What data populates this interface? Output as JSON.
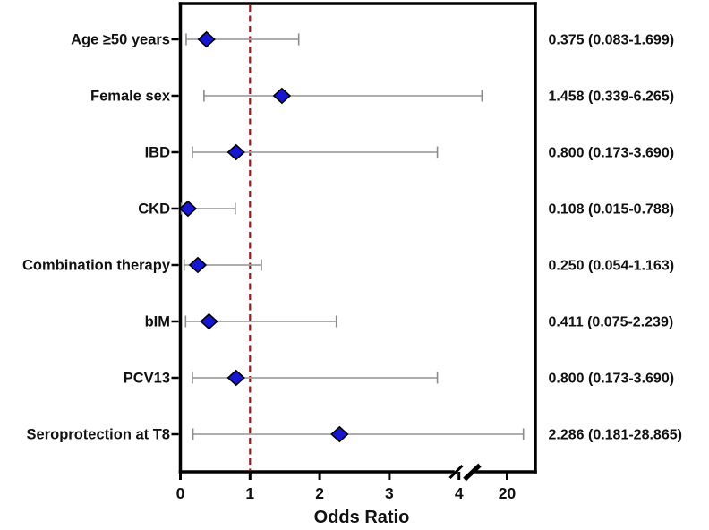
{
  "chart_data": {
    "type": "scatter",
    "subtype": "forest-plot",
    "title": "",
    "xlabel": "Odds Ratio",
    "ylabel": "",
    "x_ticks": [
      0,
      1,
      2,
      3,
      4,
      20
    ],
    "axis_break_between": [
      4,
      20
    ],
    "reference_line": 1,
    "xlim_linear_max": 4.6,
    "rows": [
      {
        "label": "Age ≥50 years",
        "or": 0.375,
        "ci_low": 0.083,
        "ci_high": 1.699,
        "value_label": "0.375 (0.083-1.699)"
      },
      {
        "label": "Female sex",
        "or": 1.458,
        "ci_low": 0.339,
        "ci_high": 6.265,
        "value_label": "1.458 (0.339-6.265)"
      },
      {
        "label": "IBD",
        "or": 0.8,
        "ci_low": 0.173,
        "ci_high": 3.69,
        "value_label": "0.800 (0.173-3.690)"
      },
      {
        "label": "CKD",
        "or": 0.108,
        "ci_low": 0.015,
        "ci_high": 0.788,
        "value_label": "0.108 (0.015-0.788)"
      },
      {
        "label": "Combination therapy",
        "or": 0.25,
        "ci_low": 0.054,
        "ci_high": 1.163,
        "value_label": "0.250 (0.054-1.163)"
      },
      {
        "label": "bIM",
        "or": 0.411,
        "ci_low": 0.075,
        "ci_high": 2.239,
        "value_label": "0.411 (0.075-2.239)"
      },
      {
        "label": "PCV13",
        "or": 0.8,
        "ci_low": 0.173,
        "ci_high": 3.69,
        "value_label": "0.800 (0.173-3.690)"
      },
      {
        "label": "Seroprotection at T8",
        "or": 2.286,
        "ci_low": 0.181,
        "ci_high": 28.865,
        "value_label": "2.286 (0.181-28.865)"
      }
    ],
    "colors": {
      "diamond": "#1616d4",
      "diamond_outline": "#000000",
      "error_bar": "#a3a3a3",
      "error_cap": "#8c8c8c",
      "reference": "#a01818",
      "axis": "#000000",
      "text": "#111111"
    },
    "legend": null,
    "grid": false
  }
}
